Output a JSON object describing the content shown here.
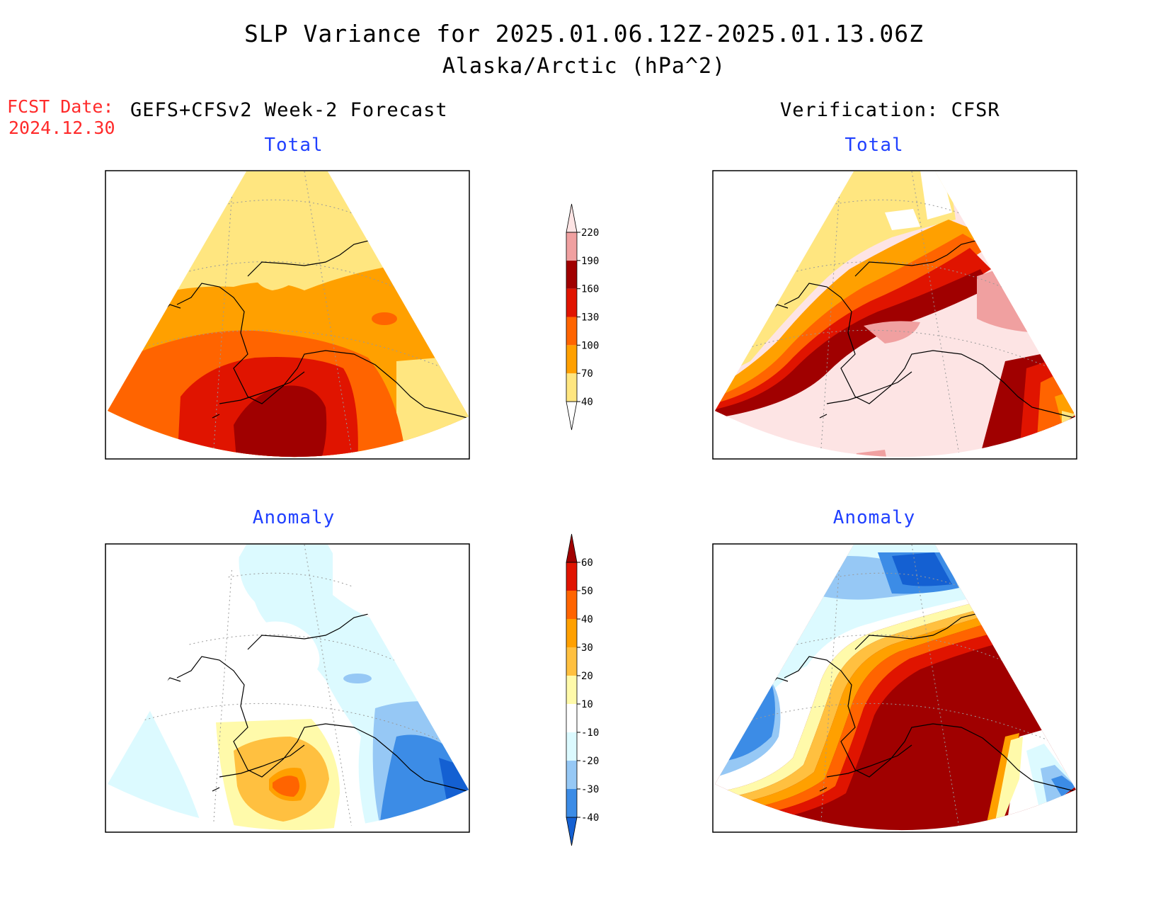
{
  "header": {
    "title": "SLP Variance for 2025.01.06.12Z-2025.01.13.06Z",
    "subtitle": "Alaska/Arctic (hPa^2)",
    "fcst_label": "FCST Date:",
    "fcst_date": "2024.12.30",
    "left_header": "GEFS+CFSv2 Week-2 Forecast",
    "right_header": "Verification: CFSR"
  },
  "panels": {
    "top_left_title": "Total",
    "top_right_title": "Total",
    "bottom_left_title": "Anomaly",
    "bottom_right_title": "Anomaly"
  },
  "colorbars": {
    "total": {
      "levels": [
        "40",
        "70",
        "100",
        "130",
        "160",
        "190",
        "220"
      ],
      "colors": [
        "#ffe680",
        "#ffa000",
        "#ff6400",
        "#e01400",
        "#a00000",
        "#f0a0a0",
        "#fde4e4"
      ]
    },
    "anomaly": {
      "levels": [
        "-40",
        "-30",
        "-20",
        "-10",
        "10",
        "20",
        "30",
        "40",
        "50",
        "60"
      ],
      "colors": [
        "#1460d2",
        "#3c8ce6",
        "#96c8f5",
        "#dcfaff",
        "#ffffff",
        "#fffaaa",
        "#ffc040",
        "#ffa000",
        "#ff6400",
        "#e01400",
        "#a00000"
      ]
    }
  },
  "palette": {
    "yellow": "#ffe680",
    "orange": "#ffa000",
    "dark_orange": "#ff6400",
    "red": "#e01400",
    "dark_red": "#a00000",
    "pink": "#f0a0a0",
    "light_pink": "#fde4e4",
    "pale_yellow": "#fffaaa",
    "light_orange": "#ffc040",
    "pale_cyan": "#dcfaff",
    "light_blue": "#96c8f5",
    "medium_blue": "#3c8ce6",
    "dark_blue": "#1460d2"
  }
}
